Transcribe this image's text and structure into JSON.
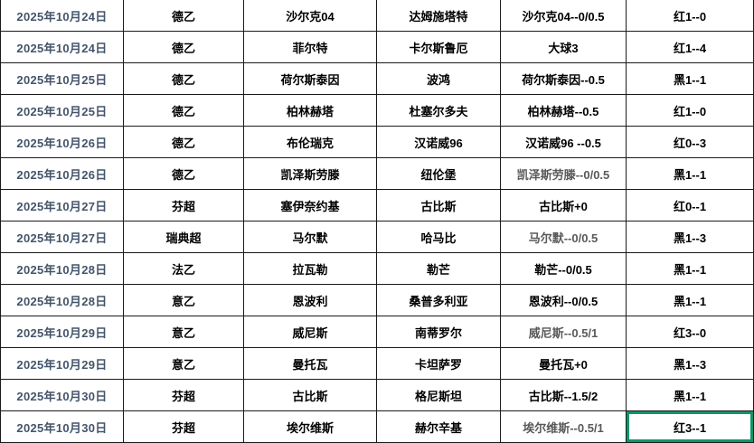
{
  "colors": {
    "background": "#FFFFFF",
    "grid_line": "#1A1A1A",
    "date_text": "#44546A",
    "body_text": "#000000",
    "muted_handicap_text": "#595959",
    "selection_border_green": "#0E9669",
    "error_triangle_green": "#217346"
  },
  "table": {
    "column_roles": [
      "date",
      "league",
      "home_team",
      "away_team",
      "handicap_pick",
      "result"
    ],
    "rows": [
      {
        "date": "2025年10月24日",
        "league": "德乙",
        "home": "沙尔克04",
        "away": "达姆施塔特",
        "handicap": "沙尔克04--0/0.5",
        "result": "红1--0"
      },
      {
        "date": "2025年10月24日",
        "league": "德乙",
        "home": "菲尔特",
        "away": "卡尔斯鲁厄",
        "handicap": "大球3",
        "result": "红1--4",
        "home_flag": true,
        "away_flag": true
      },
      {
        "date": "2025年10月25日",
        "league": "德乙",
        "home": "荷尔斯泰因",
        "away": "波鸿",
        "handicap": "荷尔斯泰因--0.5",
        "result": "黑1--1"
      },
      {
        "date": "2025年10月25日",
        "league": "德乙",
        "home": "柏林赫塔",
        "away": "杜塞尔多夫",
        "handicap": "柏林赫塔--0.5",
        "result": "红1--0"
      },
      {
        "date": "2025年10月26日",
        "league": "德乙",
        "home": "布伦瑞克",
        "away": "汉诺威96",
        "handicap": "汉诺威96 --0.5",
        "result": "红0--3"
      },
      {
        "date": "2025年10月26日",
        "league": "德乙",
        "home": "凯泽斯劳滕",
        "away": "纽伦堡",
        "handicap": "凯泽斯劳滕--0/0.5",
        "result": "黑1--1",
        "muted": true,
        "away_flag": true
      },
      {
        "date": "2025年10月27日",
        "league": "芬超",
        "home": "塞伊奈约基",
        "away": "古比斯",
        "handicap": "古比斯+0",
        "result": "红0--1"
      },
      {
        "date": "2025年10月27日",
        "league": "瑞典超",
        "home": "马尔默",
        "away": "哈马比",
        "handicap": "马尔默--0/0.5",
        "result": "黑1--3",
        "muted": true
      },
      {
        "date": "2025年10月28日",
        "league": "法乙",
        "home": "拉瓦勒",
        "away": "勒芒",
        "handicap": "勒芒--0/0.5",
        "result": "黑1--1",
        "home_flag": true
      },
      {
        "date": "2025年10月28日",
        "league": "意乙",
        "home": "恩波利",
        "away": "桑普多利亚",
        "handicap": "恩波利--0/0.5",
        "result": "黑1--1"
      },
      {
        "date": "2025年10月29日",
        "league": "意乙",
        "home": "威尼斯",
        "away": "南蒂罗尔",
        "handicap": "威尼斯--0.5/1",
        "result": "红3--0",
        "muted": true
      },
      {
        "date": "2025年10月29日",
        "league": "意乙",
        "home": "曼托瓦",
        "away": "卡坦萨罗",
        "handicap": "曼托瓦+0",
        "result": "黑1--3"
      },
      {
        "date": "2025年10月30日",
        "league": "芬超",
        "home": "古比斯",
        "away": "格尼斯坦",
        "handicap": "古比斯--1.5/2",
        "result": "黑1--1"
      },
      {
        "date": "2025年10月30日",
        "league": "芬超",
        "home": "埃尔维斯",
        "away": "赫尔辛基",
        "handicap": "埃尔维斯--0.5/1",
        "result": "红3--1",
        "muted": true,
        "selected": true
      }
    ]
  }
}
